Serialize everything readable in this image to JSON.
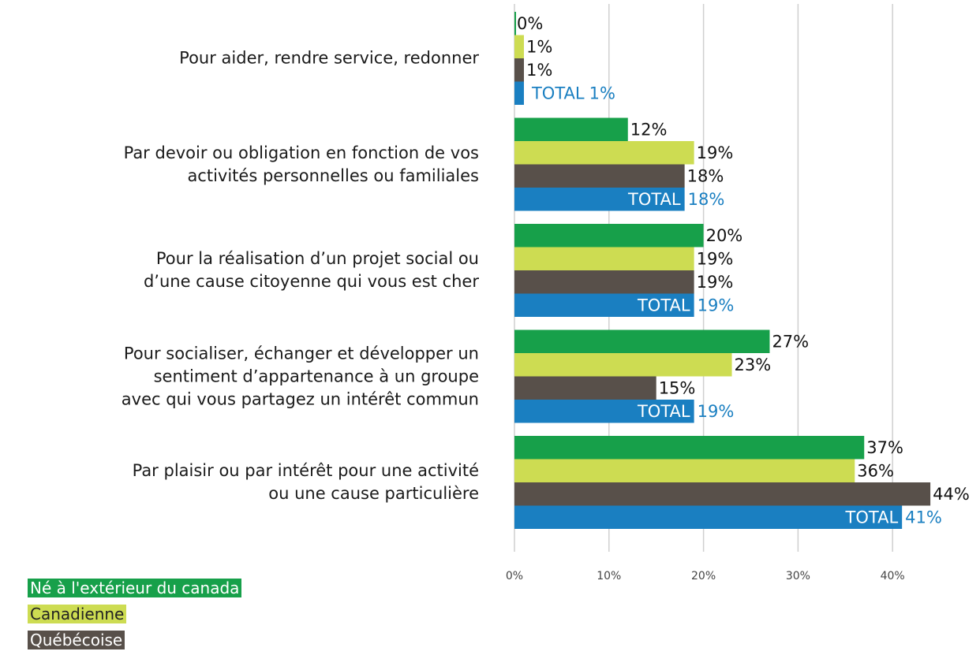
{
  "chart_data": {
    "type": "bar",
    "orientation": "horizontal",
    "categories": [
      "Pour aider, rendre service, redonner",
      "Par devoir ou obligation en fonction de vos\nactivités personnelles ou familiales",
      "Pour la réalisation d’un projet social ou\nd’une cause citoyenne qui vous est cher",
      "Pour socialiser, échanger et développer un\nsentiment d’appartenance à un groupe\navec qui vous partagez un intérêt commun",
      "Par plaisir ou par intérêt pour une activité\nou une cause particulière"
    ],
    "series": [
      {
        "name": "Né à l'extérieur du canada",
        "color": "#17a04a",
        "values": [
          0,
          12,
          20,
          27,
          37
        ],
        "value_labels": [
          "0%",
          "12%",
          "20%",
          "27%",
          "37%"
        ]
      },
      {
        "name": "Canadienne",
        "color": "#cddc52",
        "values": [
          1,
          19,
          19,
          23,
          36
        ],
        "value_labels": [
          "1%",
          "19%",
          "19%",
          "23%",
          "36%"
        ]
      },
      {
        "name": "Québécoise",
        "color": "#58504a",
        "values": [
          1,
          18,
          19,
          15,
          44
        ],
        "value_labels": [
          "1%",
          "18%",
          "19%",
          "15%",
          "44%"
        ]
      },
      {
        "name": "TOTAL",
        "color": "#1a7fc1",
        "values": [
          1,
          18,
          19,
          19,
          41
        ],
        "value_labels": [
          "1%",
          "18%",
          "19%",
          "19%",
          "41%"
        ]
      }
    ],
    "xlim": [
      0,
      49
    ],
    "xticks": [
      {
        "value": 0,
        "label": "0%"
      },
      {
        "value": 10,
        "label": "10%"
      },
      {
        "value": 20,
        "label": "20%"
      },
      {
        "value": 30,
        "label": "30%"
      },
      {
        "value": 40,
        "label": "40%"
      }
    ],
    "grid": true
  }
}
